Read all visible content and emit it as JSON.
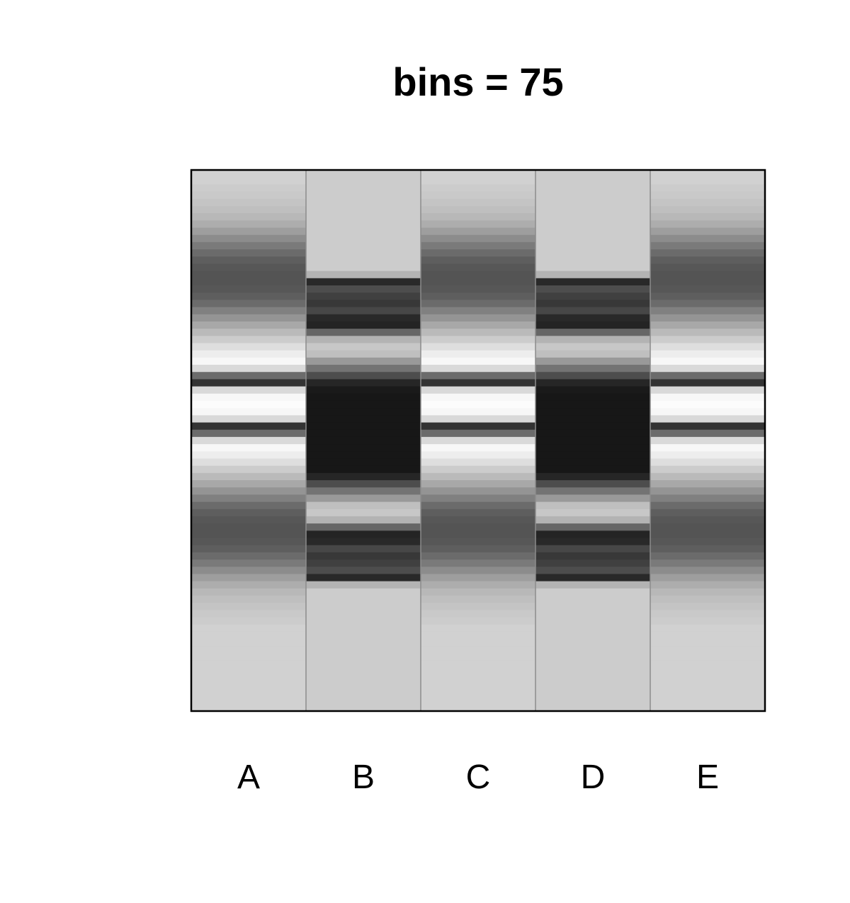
{
  "chart_data": {
    "type": "heatmap",
    "title": "bins = 75",
    "xlabel": "",
    "ylabel": "",
    "categories": [
      "A",
      "B",
      "C",
      "D",
      "E"
    ],
    "bins": 75,
    "grid": false,
    "colormap": "grayscale",
    "density_shade": {
      "A": [
        0.82,
        0.82,
        0.8,
        0.79,
        0.77,
        0.75,
        0.72,
        0.68,
        0.62,
        0.55,
        0.48,
        0.42,
        0.37,
        0.34,
        0.33,
        0.33,
        0.34,
        0.37,
        0.42,
        0.5,
        0.58,
        0.66,
        0.73,
        0.8,
        0.87,
        0.93,
        0.97,
        0.85,
        0.42,
        0.2,
        0.85,
        0.97,
        0.99,
        0.97,
        0.85,
        0.2,
        0.42,
        0.85,
        0.97,
        0.93,
        0.87,
        0.8,
        0.73,
        0.66,
        0.58,
        0.5,
        0.42,
        0.37,
        0.34,
        0.33,
        0.33,
        0.34,
        0.37,
        0.42,
        0.48,
        0.55,
        0.62,
        0.68,
        0.72,
        0.75,
        0.77,
        0.79,
        0.8,
        0.82,
        0.82,
        0.82,
        0.82,
        0.82,
        0.82,
        0.82,
        0.82,
        0.82,
        0.82,
        0.82,
        0.82
      ],
      "B": [
        0.8,
        0.8,
        0.8,
        0.8,
        0.8,
        0.8,
        0.8,
        0.8,
        0.8,
        0.8,
        0.8,
        0.8,
        0.8,
        0.8,
        0.7,
        0.16,
        0.3,
        0.25,
        0.22,
        0.28,
        0.16,
        0.14,
        0.4,
        0.7,
        0.78,
        0.75,
        0.6,
        0.45,
        0.3,
        0.15,
        0.1,
        0.09,
        0.09,
        0.09,
        0.09,
        0.09,
        0.09,
        0.09,
        0.09,
        0.09,
        0.09,
        0.09,
        0.15,
        0.3,
        0.45,
        0.6,
        0.75,
        0.78,
        0.7,
        0.4,
        0.14,
        0.16,
        0.28,
        0.22,
        0.25,
        0.3,
        0.16,
        0.7,
        0.8,
        0.8,
        0.8,
        0.8,
        0.8,
        0.8,
        0.8,
        0.8,
        0.8,
        0.8,
        0.8,
        0.8,
        0.8,
        0.8,
        0.8,
        0.8,
        0.8
      ],
      "C": [
        0.82,
        0.82,
        0.8,
        0.79,
        0.77,
        0.75,
        0.72,
        0.68,
        0.62,
        0.55,
        0.48,
        0.42,
        0.37,
        0.34,
        0.33,
        0.33,
        0.34,
        0.37,
        0.42,
        0.5,
        0.58,
        0.66,
        0.73,
        0.8,
        0.87,
        0.93,
        0.97,
        0.85,
        0.42,
        0.2,
        0.85,
        0.97,
        0.99,
        0.97,
        0.85,
        0.2,
        0.42,
        0.85,
        0.97,
        0.93,
        0.87,
        0.8,
        0.73,
        0.66,
        0.58,
        0.5,
        0.42,
        0.37,
        0.34,
        0.33,
        0.33,
        0.34,
        0.37,
        0.42,
        0.48,
        0.55,
        0.62,
        0.68,
        0.72,
        0.75,
        0.77,
        0.79,
        0.8,
        0.82,
        0.82,
        0.82,
        0.82,
        0.82,
        0.82,
        0.82,
        0.82,
        0.82,
        0.82,
        0.82,
        0.82
      ],
      "D": [
        0.8,
        0.8,
        0.8,
        0.8,
        0.8,
        0.8,
        0.8,
        0.8,
        0.8,
        0.8,
        0.8,
        0.8,
        0.8,
        0.8,
        0.7,
        0.16,
        0.3,
        0.25,
        0.22,
        0.28,
        0.16,
        0.14,
        0.4,
        0.7,
        0.78,
        0.75,
        0.6,
        0.45,
        0.3,
        0.15,
        0.1,
        0.09,
        0.09,
        0.09,
        0.09,
        0.09,
        0.09,
        0.09,
        0.09,
        0.09,
        0.09,
        0.09,
        0.15,
        0.3,
        0.45,
        0.6,
        0.75,
        0.78,
        0.7,
        0.4,
        0.14,
        0.16,
        0.28,
        0.22,
        0.25,
        0.3,
        0.16,
        0.7,
        0.8,
        0.8,
        0.8,
        0.8,
        0.8,
        0.8,
        0.8,
        0.8,
        0.8,
        0.8,
        0.8,
        0.8,
        0.8,
        0.8,
        0.8,
        0.8,
        0.8
      ],
      "E": [
        0.82,
        0.82,
        0.8,
        0.79,
        0.77,
        0.75,
        0.72,
        0.68,
        0.62,
        0.55,
        0.48,
        0.42,
        0.37,
        0.34,
        0.33,
        0.33,
        0.34,
        0.37,
        0.42,
        0.5,
        0.58,
        0.66,
        0.73,
        0.8,
        0.87,
        0.93,
        0.97,
        0.85,
        0.42,
        0.2,
        0.85,
        0.97,
        0.99,
        0.97,
        0.85,
        0.2,
        0.42,
        0.85,
        0.97,
        0.93,
        0.87,
        0.8,
        0.73,
        0.66,
        0.58,
        0.5,
        0.42,
        0.37,
        0.34,
        0.33,
        0.33,
        0.34,
        0.37,
        0.42,
        0.48,
        0.55,
        0.62,
        0.68,
        0.72,
        0.75,
        0.77,
        0.79,
        0.8,
        0.82,
        0.82,
        0.82,
        0.82,
        0.82,
        0.82,
        0.82,
        0.82,
        0.82,
        0.82,
        0.82,
        0.82
      ]
    },
    "colors": {
      "border": "#000000",
      "separator": "#8c8c8c",
      "text": "#000000"
    }
  }
}
